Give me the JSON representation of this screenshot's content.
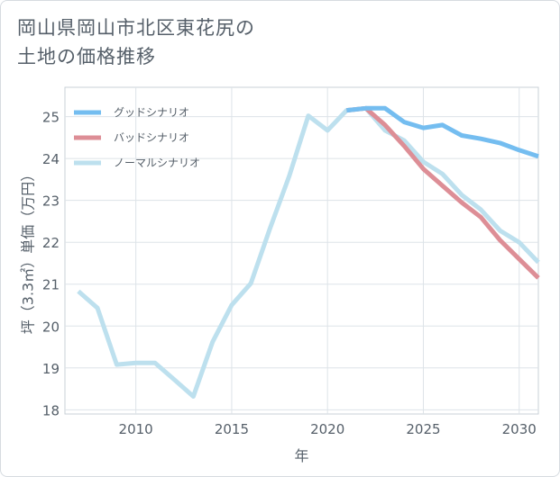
{
  "title": {
    "line1": "岡山県岡山市北区東花尻の",
    "line2": "土地の価格推移"
  },
  "chart_data": {
    "type": "line",
    "xlabel": "年",
    "ylabel": "坪（3.3㎡）単価（万円）",
    "xlim": [
      2006.3,
      2031
    ],
    "ylim": [
      17.9,
      25.7
    ],
    "xticks": [
      2010,
      2015,
      2020,
      2025,
      2030
    ],
    "yticks": [
      18,
      19,
      20,
      21,
      22,
      23,
      24,
      25
    ],
    "grid": true,
    "legend_position": "top-left",
    "series": [
      {
        "name": "グッドシナリオ",
        "color": "#74bdf0",
        "x": [
          2021,
          2022,
          2023,
          2024,
          2025,
          2026,
          2027,
          2028,
          2029,
          2030,
          2031
        ],
        "y": [
          25.15,
          25.2,
          25.2,
          24.87,
          24.73,
          24.8,
          24.55,
          24.47,
          24.37,
          24.2,
          24.05
        ]
      },
      {
        "name": "バッドシナリオ",
        "color": "#dd8e96",
        "x": [
          2021,
          2022,
          2023,
          2024,
          2025,
          2026,
          2027,
          2028,
          2029,
          2030,
          2031
        ],
        "y": [
          25.15,
          25.2,
          24.8,
          24.3,
          23.75,
          23.35,
          22.95,
          22.6,
          22.05,
          21.6,
          21.15
        ]
      },
      {
        "name": "ノーマルシナリオ",
        "color": "#bde0ee",
        "x": [
          2007,
          2008,
          2009,
          2010,
          2011,
          2012,
          2013,
          2014,
          2015,
          2016,
          2017,
          2018,
          2019,
          2020,
          2021,
          2022,
          2023,
          2024,
          2025,
          2026,
          2027,
          2028,
          2029,
          2030,
          2031
        ],
        "y": [
          20.83,
          20.43,
          19.08,
          19.12,
          19.12,
          18.72,
          18.32,
          19.62,
          20.5,
          21.02,
          22.33,
          23.58,
          25.02,
          24.67,
          25.15,
          25.2,
          24.67,
          24.43,
          23.92,
          23.63,
          23.13,
          22.78,
          22.28,
          22.0,
          21.52
        ]
      }
    ]
  }
}
